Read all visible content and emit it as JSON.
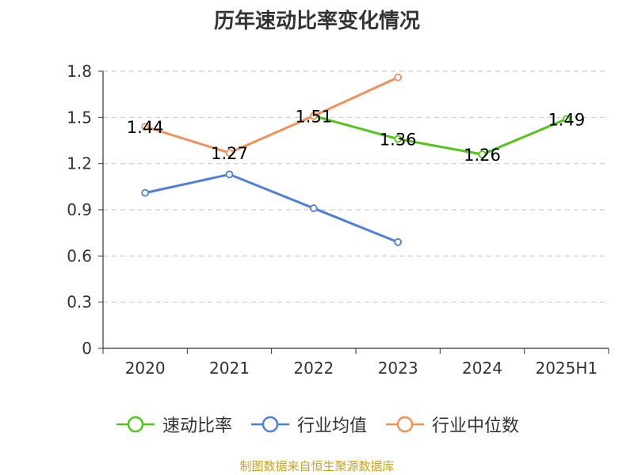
{
  "title": "历年速动比率变化情况",
  "source": "制图数据来自恒生聚源数据库",
  "colors": {
    "axis": "#333333",
    "grid": "#cccccc"
  },
  "chart_data": {
    "type": "line",
    "categories": [
      "2020",
      "2021",
      "2022",
      "2023",
      "2024",
      "2025H1"
    ],
    "ylim": [
      0,
      1.8
    ],
    "yticks": [
      "0",
      "0.3",
      "0.6",
      "0.9",
      "1.2",
      "1.5",
      "1.8"
    ],
    "grid": true,
    "legend_position": "bottom",
    "series": [
      {
        "name": "速动比率",
        "color": "#52c41a",
        "values": [
          null,
          null,
          1.51,
          1.36,
          1.26,
          1.49
        ],
        "labels": [
          "",
          "",
          "1.51",
          "1.36",
          "1.26",
          "1.49"
        ],
        "label_values": [
          1.44,
          1.27,
          1.51,
          1.36,
          1.26,
          1.49
        ]
      },
      {
        "name": "行业均值",
        "color": "#4e7fd9",
        "values": [
          1.01,
          1.13,
          0.91,
          0.69,
          null,
          null
        ]
      },
      {
        "name": "行业中位数",
        "color": "#f0915a",
        "values": [
          1.44,
          1.27,
          1.51,
          1.76,
          null,
          null
        ]
      }
    ],
    "data_labels": [
      {
        "category": "2020",
        "value": 1.44,
        "text": "1.44"
      },
      {
        "category": "2021",
        "value": 1.27,
        "text": "1.27"
      },
      {
        "category": "2022",
        "value": 1.51,
        "text": "1.51"
      },
      {
        "category": "2023",
        "value": 1.36,
        "text": "1.36"
      },
      {
        "category": "2024",
        "value": 1.26,
        "text": "1.26"
      },
      {
        "category": "2025H1",
        "value": 1.49,
        "text": "1.49"
      }
    ]
  }
}
